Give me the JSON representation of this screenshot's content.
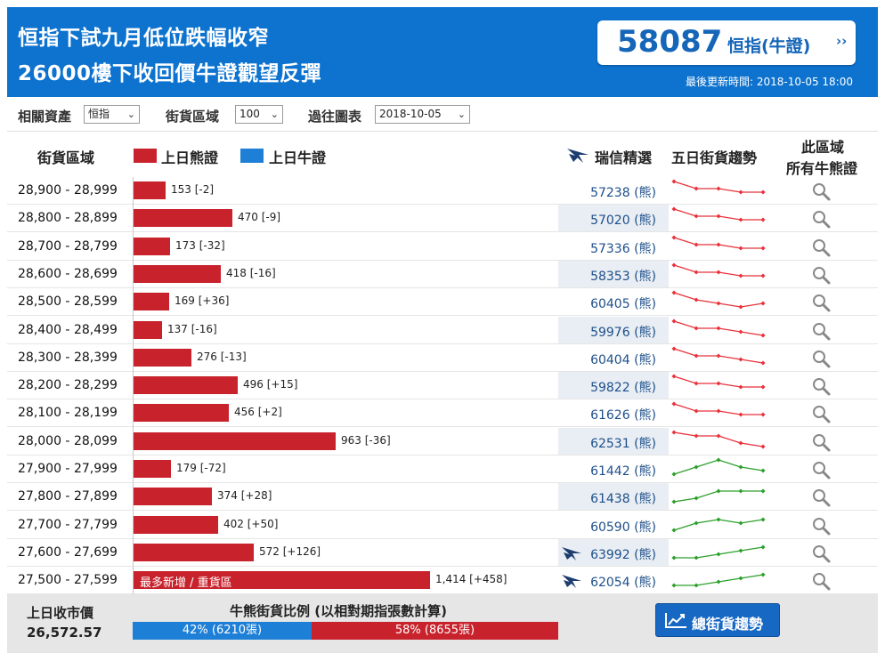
{
  "header": {
    "title_line1": "恒指下試九月低位跌幅收窄",
    "title_line2": "26000樓下收回價牛證觀望反彈",
    "code": "58087",
    "code_type": "恒指(牛證)",
    "code_arrow": "››",
    "updated": "最後更新時間: 2018-10-05 18:00"
  },
  "controls": {
    "asset_label": "相關資產",
    "asset_value": "恒指",
    "zone_label": "街貨區域",
    "zone_value": "100",
    "past_label": "過往圖表",
    "past_value": "2018-10-05"
  },
  "table_header": {
    "range": "街貨區域",
    "bear_legend": "上日熊證",
    "bull_legend": "上日牛證",
    "ubs": "瑞信精選",
    "trend": "五日街貨趨勢",
    "all_line1": "此區域",
    "all_line2": "所有牛熊證"
  },
  "colors": {
    "bear": "#c8232c",
    "bull": "#1e7fd6",
    "header_bg": "#0d73cf",
    "trend_down": "#e8323c",
    "trend_up": "#2ca02c"
  },
  "rows": [
    {
      "range": "28,900 - 28,999",
      "value": 153,
      "label": "153 [-2]",
      "code": "57238 (熊)",
      "ubs": false,
      "trend": "down",
      "spark": [
        5,
        3,
        3,
        2,
        2
      ]
    },
    {
      "range": "28,800 - 28,899",
      "value": 470,
      "label": "470 [-9]",
      "code": "57020 (熊)",
      "ubs": false,
      "trend": "down",
      "spark": [
        5,
        3,
        3,
        2,
        2
      ]
    },
    {
      "range": "28,700 - 28,799",
      "value": 173,
      "label": "173 [-32]",
      "code": "57336 (熊)",
      "ubs": false,
      "trend": "down",
      "spark": [
        5,
        3,
        3,
        2,
        2
      ]
    },
    {
      "range": "28,600 - 28,699",
      "value": 418,
      "label": "418 [-16]",
      "code": "58353 (熊)",
      "ubs": false,
      "trend": "down",
      "spark": [
        5,
        3,
        3,
        2,
        2
      ]
    },
    {
      "range": "28,500 - 28,599",
      "value": 169,
      "label": "169 [+36]",
      "code": "60405 (熊)",
      "ubs": false,
      "trend": "down",
      "spark": [
        5,
        3,
        2,
        1,
        2
      ]
    },
    {
      "range": "28,400 - 28,499",
      "value": 137,
      "label": "137 [-16]",
      "code": "59976 (熊)",
      "ubs": false,
      "trend": "down",
      "spark": [
        5,
        3,
        3,
        2,
        1
      ]
    },
    {
      "range": "28,300 - 28,399",
      "value": 276,
      "label": "276 [-13]",
      "code": "60404 (熊)",
      "ubs": false,
      "trend": "down",
      "spark": [
        5,
        3,
        3,
        2,
        1
      ]
    },
    {
      "range": "28,200 - 28,299",
      "value": 496,
      "label": "496 [+15]",
      "code": "59822 (熊)",
      "ubs": false,
      "trend": "down",
      "spark": [
        5,
        3,
        3,
        2,
        2
      ]
    },
    {
      "range": "28,100 - 28,199",
      "value": 456,
      "label": "456 [+2]",
      "code": "61626 (熊)",
      "ubs": false,
      "trend": "down",
      "spark": [
        5,
        3,
        3,
        2,
        2
      ]
    },
    {
      "range": "28,000 - 28,099",
      "value": 963,
      "label": "963 [-36]",
      "code": "62531 (熊)",
      "ubs": false,
      "trend": "down",
      "spark": [
        5,
        4,
        4,
        2,
        1
      ]
    },
    {
      "range": "27,900 - 27,999",
      "value": 179,
      "label": "179 [-72]",
      "code": "61442 (熊)",
      "ubs": false,
      "trend": "up",
      "spark": [
        1,
        3,
        5,
        3,
        2
      ]
    },
    {
      "range": "27,800 - 27,899",
      "value": 374,
      "label": "374 [+28]",
      "code": "61438 (熊)",
      "ubs": false,
      "trend": "up",
      "spark": [
        1,
        2,
        4,
        4,
        4
      ]
    },
    {
      "range": "27,700 - 27,799",
      "value": 402,
      "label": "402 [+50]",
      "code": "60590 (熊)",
      "ubs": false,
      "trend": "up",
      "spark": [
        1,
        3,
        4,
        3,
        4
      ]
    },
    {
      "range": "27,600 - 27,699",
      "value": 572,
      "label": "572 [+126]",
      "code": "63992 (熊)",
      "ubs": true,
      "trend": "up",
      "spark": [
        1,
        1,
        2,
        3,
        4
      ]
    },
    {
      "range": "27,500 - 27,599",
      "value": 1414,
      "label": "1,414 [+458]",
      "code": "62054 (熊)",
      "ubs": true,
      "trend": "up",
      "spark": [
        1,
        1,
        2,
        3,
        4
      ],
      "tag": "最多新增 / 重貨區"
    }
  ],
  "footer": {
    "close_label": "上日收市價",
    "close_value": "26,572.57",
    "ratio_title": "牛熊街貨比例 (以相對期指張數計算)",
    "bull_pct": 42,
    "bull_text": "42% (6210張)",
    "bear_text": "58% (8655張)",
    "trend_button": "總街貨趨勢"
  }
}
